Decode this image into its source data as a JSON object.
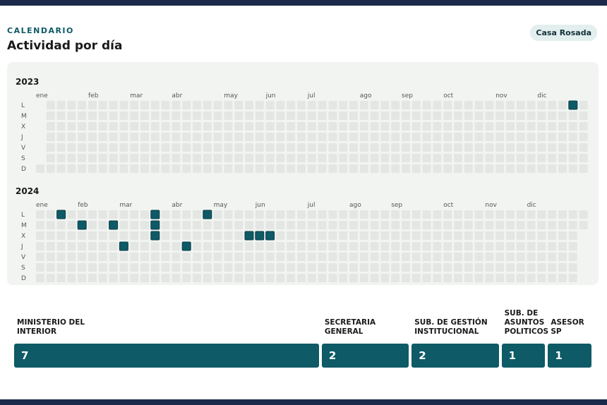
{
  "header": {
    "eyebrow": "CALENDARIO",
    "title": "Actividad por día",
    "badge": "Casa Rosada"
  },
  "calendar": {
    "months": [
      "ene",
      "feb",
      "mar",
      "abr",
      "may",
      "jun",
      "jul",
      "ago",
      "sep",
      "oct",
      "nov",
      "dic"
    ],
    "weekdays": [
      "L",
      "M",
      "X",
      "J",
      "V",
      "S",
      "D"
    ],
    "years": [
      {
        "year": "2023",
        "active": [
          "2023-12-18"
        ]
      },
      {
        "year": "2024",
        "active": [
          "2024-01-15",
          "2024-01-30",
          "2024-02-20",
          "2024-02-29",
          "2024-03-18",
          "2024-03-19",
          "2024-03-20",
          "2024-04-11",
          "2024-04-22",
          "2024-05-22",
          "2024-05-29",
          "2024-06-05"
        ]
      }
    ]
  },
  "breakdown": [
    {
      "label": "MINISTERIO DEL INTERIOR",
      "value": 7
    },
    {
      "label": "SECRETARIA GENERAL",
      "value": 2
    },
    {
      "label": "SUB. DE GESTIÓN INSTITUCIONAL",
      "value": 2
    },
    {
      "label": "SUB. DE ASUNTOS POLITICOS",
      "value": 1
    },
    {
      "label": "ASESOR SP",
      "value": 1
    }
  ]
}
